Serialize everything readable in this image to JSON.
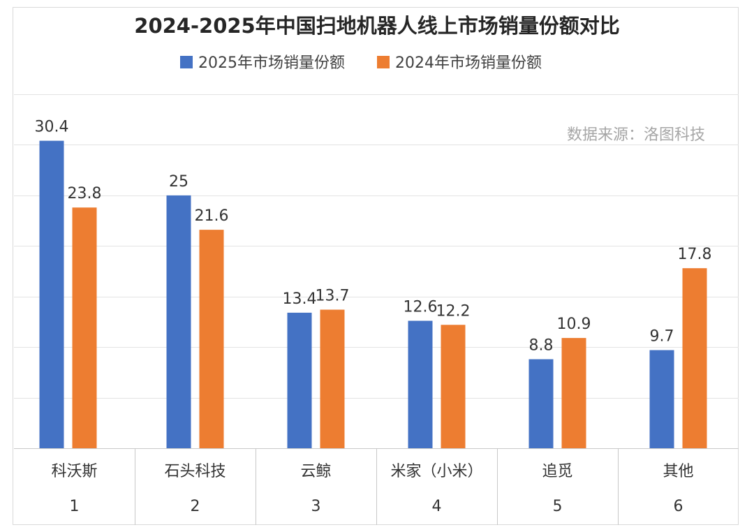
{
  "chart_data": {
    "type": "bar",
    "title": "2024-2025年中国扫地机器人线上市场销量份额对比",
    "source_note": "数据来源：洛图科技",
    "categories": [
      "科沃斯",
      "石头科技",
      "云鲸",
      "米家（小米）",
      "追觅",
      "其他"
    ],
    "category_index": [
      "1",
      "2",
      "3",
      "4",
      "5",
      "6"
    ],
    "series": [
      {
        "name": "2025年市场销量份额",
        "color": "#4472C4",
        "values": [
          30.4,
          25,
          13.4,
          12.6,
          8.8,
          9.7
        ]
      },
      {
        "name": "2024年市场销量份额",
        "color": "#ED7D31",
        "values": [
          23.8,
          21.6,
          13.7,
          12.2,
          10.9,
          17.8
        ]
      }
    ],
    "ylim": [
      0,
      35
    ],
    "grid": true,
    "legend_position": "top-center"
  }
}
